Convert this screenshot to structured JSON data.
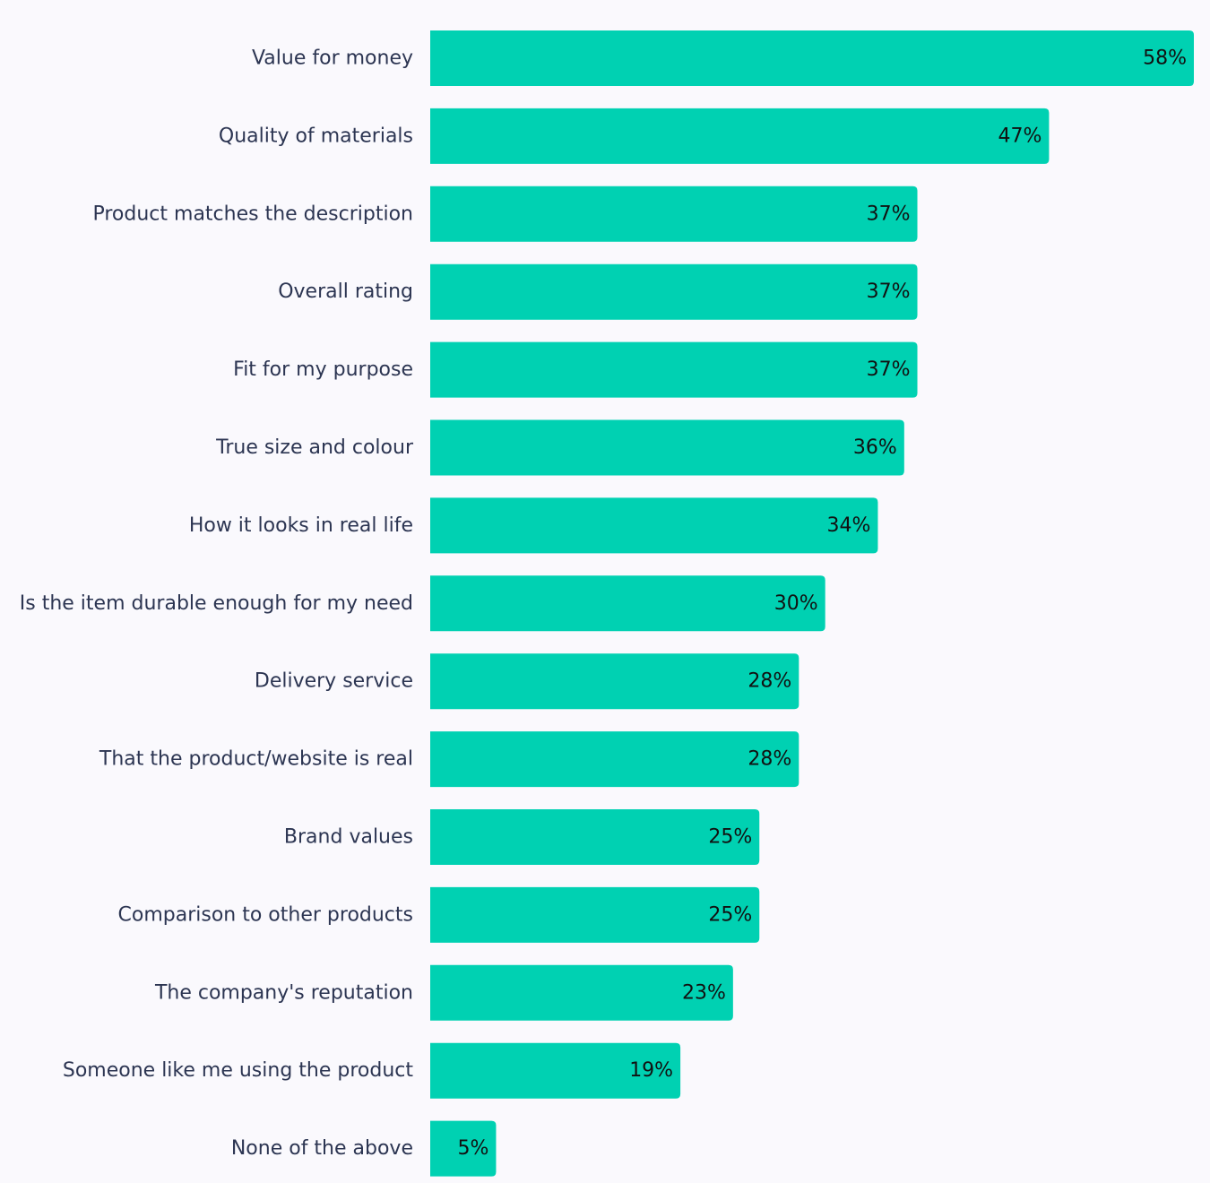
{
  "chart_data": {
    "type": "bar",
    "orientation": "horizontal",
    "categories": [
      "Value for money",
      "Quality of materials",
      "Product matches the description",
      "Overall rating",
      "Fit for my purpose",
      "True size and colour",
      "How it looks in real life",
      "Is the item durable enough for my need",
      "Delivery service",
      "That the product/website is real",
      "Brand values",
      "Comparison to other products",
      "The company's reputation",
      "Someone like me using the product",
      "None of the above"
    ],
    "values": [
      58,
      47,
      37,
      37,
      37,
      36,
      34,
      30,
      28,
      28,
      25,
      25,
      23,
      19,
      5
    ],
    "value_labels": [
      "58%",
      "47%",
      "37%",
      "37%",
      "37%",
      "36%",
      "34%",
      "30%",
      "28%",
      "28%",
      "25%",
      "25%",
      "23%",
      "19%",
      "5%"
    ],
    "unit": "%",
    "xlim": [
      0,
      58
    ],
    "grid": false,
    "legend": "none",
    "colors": {
      "bar": "#00d1b2",
      "category_text": "#2c3552",
      "value_text": "#111111",
      "background": "#faf9fd"
    }
  }
}
